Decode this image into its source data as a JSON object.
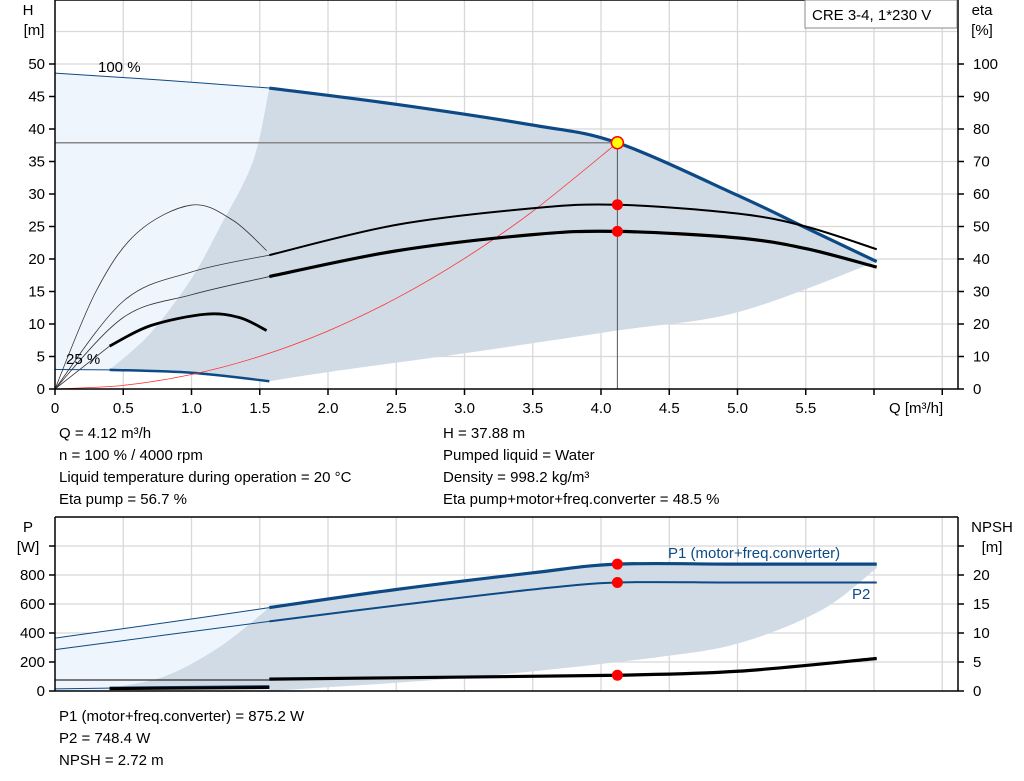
{
  "title_box": "CRE 3-4, 1*230 V",
  "colors": {
    "pump_curve": "#0d4a85",
    "efficiency": "#000000",
    "system_curve": "#ff3030",
    "area_dark": "#d0dbe6",
    "area_light": "#eef5fd",
    "operating_point": "#ff0000",
    "duty_point": "#ffff00"
  },
  "info_top": {
    "q": "Q = 4.12 m³/h",
    "n": "n = 100 % / 4000 rpm",
    "temp": "Liquid temperature during operation = 20 °C",
    "eta_pump": "Eta pump = 56.7 %",
    "h": "H = 37.88 m",
    "liquid": "Pumped liquid = Water",
    "density": "Density = 998.2 kg/m³",
    "eta_total": "Eta pump+motor+freq.converter = 48.5 %"
  },
  "info_bottom": {
    "p1": "P1 (motor+freq.converter) = 875.2 W",
    "p2": "P2 = 748.4 W",
    "npsh": "NPSH = 2.72 m"
  },
  "chart_data": [
    {
      "type": "line",
      "xlabel": "Q [m³/h]",
      "ylabel_left": "H",
      "ylabel_left_unit": "[m]",
      "ylabel_right": "eta",
      "ylabel_right_unit": "[%]",
      "xlim": [
        0,
        6.5
      ],
      "ylim_left": [
        0,
        55
      ],
      "ylim_right": [
        0,
        110
      ],
      "xticks": [
        "0",
        "0.5",
        "1.0",
        "1.5",
        "2.0",
        "2.5",
        "3.0",
        "3.5",
        "4.0",
        "4.5",
        "5.0",
        "5.5"
      ],
      "yticks_left": [
        "0",
        "5",
        "10",
        "15",
        "20",
        "25",
        "30",
        "35",
        "40",
        "45",
        "50"
      ],
      "yticks_right": [
        "0",
        "10",
        "20",
        "30",
        "40",
        "50",
        "60",
        "70",
        "80",
        "90",
        "100"
      ],
      "grid": true,
      "speed_labels": [
        "100 %",
        "25 %"
      ],
      "curves": {
        "H_100_thin": [
          [
            0,
            48.6
          ],
          [
            0.8,
            47.5
          ],
          [
            1.57,
            46.3
          ]
        ],
        "H_100": [
          [
            1.57,
            46.3
          ],
          [
            2.5,
            43.8
          ],
          [
            3.5,
            40.6
          ],
          [
            4.12,
            37.88
          ],
          [
            5.0,
            29.8
          ],
          [
            5.5,
            24.8
          ],
          [
            6.02,
            19.6
          ]
        ],
        "H_25_thin": [
          [
            0,
            3.0
          ],
          [
            0.4,
            2.95
          ]
        ],
        "H_25": [
          [
            0.4,
            2.95
          ],
          [
            1.0,
            2.5
          ],
          [
            1.57,
            1.2
          ]
        ],
        "system_curve": [
          [
            0,
            0
          ],
          [
            0.5,
            0.56
          ],
          [
            1,
            2.23
          ],
          [
            1.5,
            5.02
          ],
          [
            2,
            8.93
          ],
          [
            2.5,
            13.95
          ],
          [
            3,
            20.09
          ],
          [
            3.5,
            27.34
          ],
          [
            4.12,
            37.88
          ]
        ],
        "eta_pump_thin": [
          [
            0,
            0
          ],
          [
            0.5,
            27
          ],
          [
            1.0,
            36
          ],
          [
            1.57,
            41.2
          ]
        ],
        "eta_pump": [
          [
            1.57,
            41.2
          ],
          [
            2.5,
            50.5
          ],
          [
            3.5,
            55.6
          ],
          [
            4.12,
            56.7
          ],
          [
            5.0,
            54
          ],
          [
            5.5,
            50
          ],
          [
            6.02,
            43
          ]
        ],
        "eta_total_thin": [
          [
            0,
            0
          ],
          [
            0.5,
            22
          ],
          [
            1.0,
            29
          ],
          [
            1.57,
            34.6
          ]
        ],
        "eta_total": [
          [
            1.57,
            34.6
          ],
          [
            2.5,
            42.5
          ],
          [
            3.5,
            47.5
          ],
          [
            4.12,
            48.5
          ],
          [
            5.0,
            46.5
          ],
          [
            5.5,
            43.2
          ],
          [
            6.02,
            37.5
          ]
        ],
        "eta_pump_25": [
          [
            0,
            0
          ],
          [
            0.3,
            30
          ],
          [
            0.6,
            48
          ],
          [
            1.0,
            56.6
          ],
          [
            1.3,
            52
          ],
          [
            1.55,
            42.6
          ]
        ],
        "eta_total_25_thin": [
          [
            0,
            0
          ],
          [
            0.4,
            13.2
          ]
        ],
        "eta_total_25": [
          [
            0.4,
            13.2
          ],
          [
            0.7,
            19.5
          ],
          [
            1.1,
            23
          ],
          [
            1.35,
            22
          ],
          [
            1.55,
            18
          ]
        ]
      },
      "operating_area_lower": [
        [
          6.02,
          19.6
        ],
        [
          5.0,
          11.8
        ],
        [
          4.12,
          9
        ],
        [
          3.0,
          5.5
        ],
        [
          2.0,
          2.6
        ],
        [
          1.57,
          1.2
        ]
      ],
      "operating_area_left": [
        [
          0.4,
          2.95
        ],
        [
          0.7,
          8.6
        ],
        [
          1.0,
          17
        ],
        [
          1.21,
          25
        ],
        [
          1.45,
          35
        ],
        [
          1.57,
          46.3
        ]
      ],
      "duty_point": {
        "q": 4.12,
        "h": 37.88,
        "eta_pump": 56.7,
        "eta_total": 48.5
      }
    },
    {
      "type": "line",
      "ylabel_left": "P",
      "ylabel_left_unit": "[W]",
      "ylabel_right": "NPSH",
      "ylabel_right_unit": "[m]",
      "xlim": [
        0,
        6.5
      ],
      "ylim_left": [
        0,
        1200
      ],
      "ylim_right": [
        0,
        30
      ],
      "yticks_left": [
        "0",
        "200",
        "400",
        "600",
        "800"
      ],
      "yticks_right": [
        "0",
        "5",
        "10",
        "15",
        "20"
      ],
      "grid": true,
      "series_labels": [
        "P1 (motor+freq.converter)",
        "P2"
      ],
      "curves": {
        "P1_thin": [
          [
            0,
            365
          ],
          [
            0.8,
            470
          ],
          [
            1.57,
            575
          ]
        ],
        "P1": [
          [
            1.57,
            575
          ],
          [
            2.5,
            700
          ],
          [
            3.5,
            815
          ],
          [
            4.12,
            875
          ],
          [
            5,
            875
          ],
          [
            6.02,
            875
          ]
        ],
        "P2_thin": [
          [
            0,
            285
          ],
          [
            0.8,
            385
          ],
          [
            1.57,
            480
          ]
        ],
        "P2": [
          [
            1.57,
            480
          ],
          [
            2.5,
            590
          ],
          [
            3.5,
            700
          ],
          [
            4.12,
            748
          ],
          [
            5,
            748
          ],
          [
            6.02,
            748
          ]
        ],
        "P_25_thin": [
          [
            0,
            15
          ],
          [
            0.4,
            20
          ]
        ],
        "P_25": [
          [
            0.4,
            20
          ],
          [
            1.0,
            25
          ],
          [
            1.57,
            30
          ]
        ],
        "NPSH_thin": [
          [
            0,
            1.9
          ],
          [
            1.57,
            1.9
          ]
        ],
        "NPSH": [
          [
            1.57,
            2.05
          ],
          [
            3.0,
            2.4
          ],
          [
            4.12,
            2.72
          ],
          [
            5.0,
            3.4
          ],
          [
            6.02,
            5.6
          ]
        ],
        "NPSH_25": [
          [
            0.4,
            0.4
          ],
          [
            1.57,
            0.6
          ]
        ]
      },
      "operating_area_lower": [
        [
          6.02,
          848
        ],
        [
          5.62,
          560
        ],
        [
          5.04,
          338
        ],
        [
          4.42,
          234
        ],
        [
          3.07,
          97
        ],
        [
          1.57,
          0
        ]
      ],
      "operating_area_left": [
        [
          0.4,
          20
        ],
        [
          0.8,
          100
        ],
        [
          1.2,
          300
        ],
        [
          1.57,
          575
        ]
      ],
      "duty_point": {
        "q": 4.12,
        "p1": 875.2,
        "p2": 748.4,
        "npsh": 2.72
      }
    }
  ]
}
